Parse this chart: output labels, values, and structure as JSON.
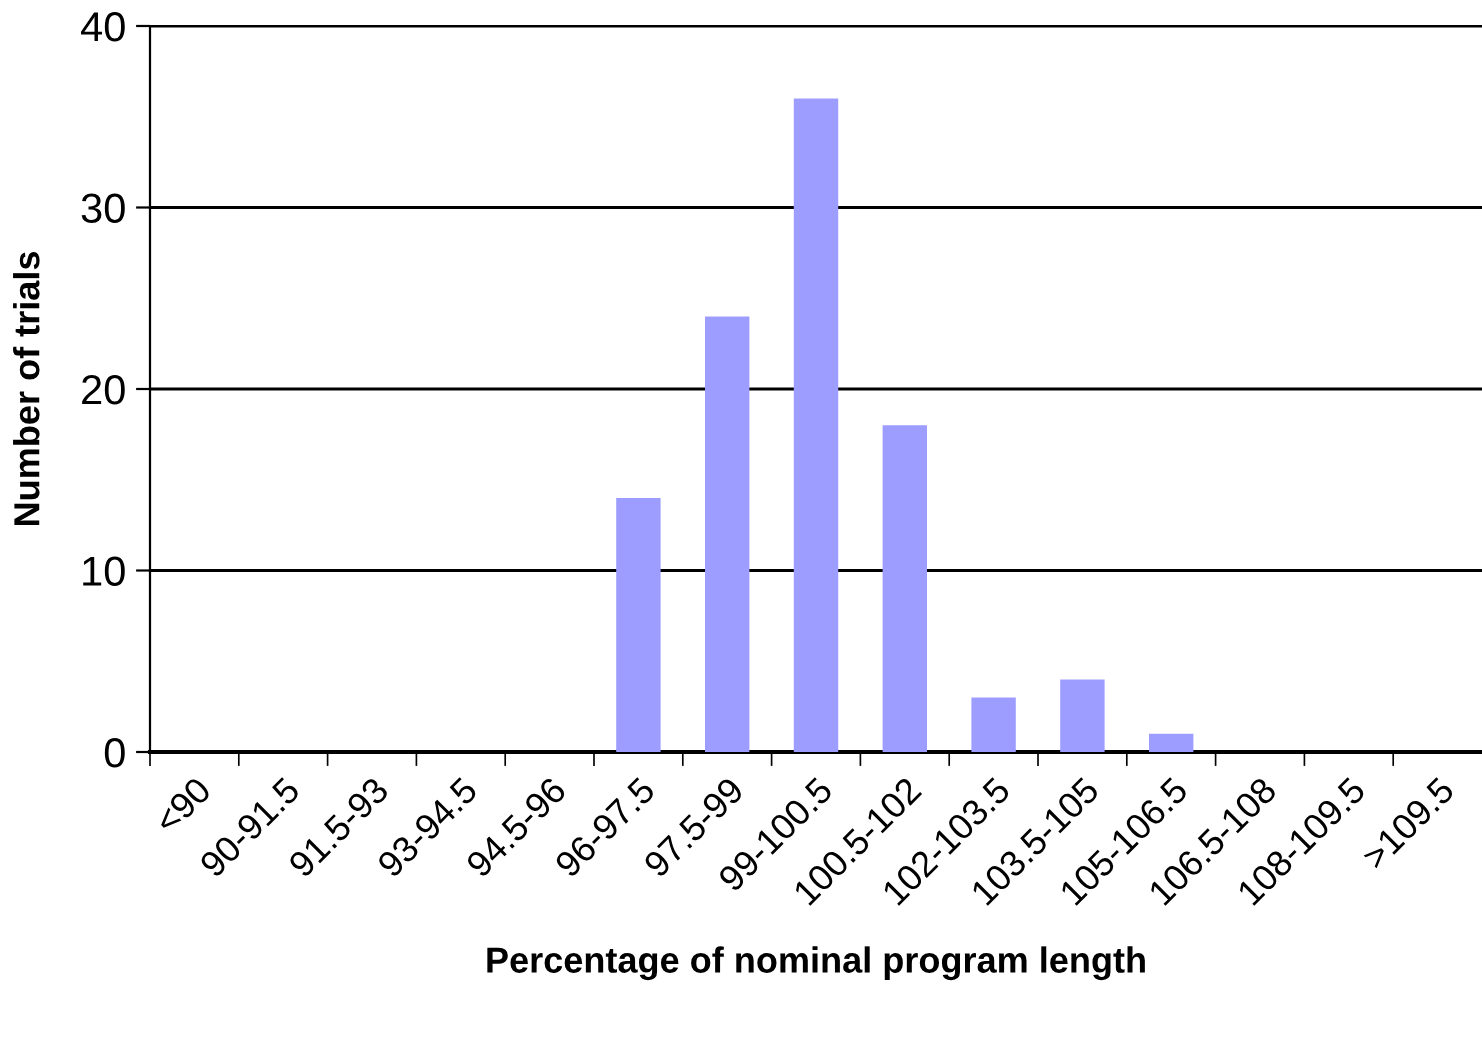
{
  "chart_data": {
    "type": "bar",
    "xlabel": "Percentage of nominal program length",
    "ylabel": "Number of trials",
    "categories": [
      "<90",
      "90-91.5",
      "91.5-93",
      "93-94.5",
      "94.5-96",
      "96-97.5",
      "97.5-99",
      "99-100.5",
      "100.5-102",
      "102-103.5",
      "103.5-105",
      "105-106.5",
      "106.5-108",
      "108-109.5",
      ">109.5"
    ],
    "values": [
      0,
      0,
      0,
      0,
      0,
      14,
      24,
      36,
      18,
      3,
      4,
      1,
      0,
      0,
      0
    ],
    "color": "#9d9dff",
    "ylim": [
      0,
      40
    ],
    "yticks": [
      0,
      10,
      20,
      30,
      40
    ],
    "grid": "y"
  }
}
